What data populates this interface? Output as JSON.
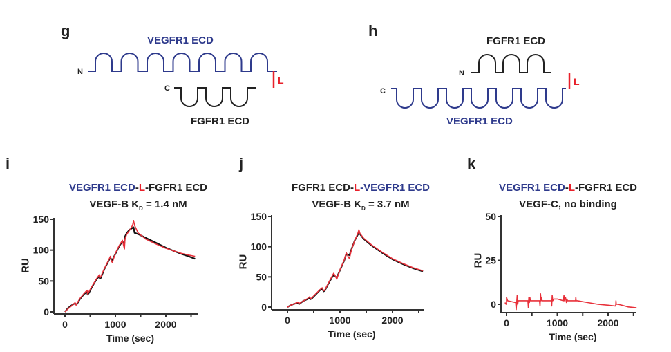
{
  "colors": {
    "vegfr1": "#2e3a8c",
    "fgfr1": "#222222",
    "linker": "#e8202a",
    "data_trace": "#e8303a",
    "fit_trace": "#111111",
    "axis": "#333333"
  },
  "diagrams": [
    {
      "panel_label": "g",
      "top_domain": {
        "label": "VEGFR1 ECD",
        "loops": 7,
        "protein": "vegfr1"
      },
      "bottom_domain": {
        "label": "FGFR1 ECD",
        "loops": 3,
        "protein": "fgfr1"
      },
      "n_terminus": "N",
      "c_terminus": "C",
      "linker_label": "L"
    },
    {
      "panel_label": "h",
      "top_domain": {
        "label": "FGFR1 ECD",
        "loops": 3,
        "protein": "fgfr1"
      },
      "bottom_domain": {
        "label": "VEGFR1 ECD",
        "loops": 7,
        "protein": "vegfr1"
      },
      "n_terminus": "N",
      "c_terminus": "C",
      "linker_label": "L"
    }
  ],
  "chart_data": [
    {
      "panel_label": "i",
      "type": "line",
      "title_parts": [
        {
          "text": "VEGFR1 ECD",
          "color": "vegfr1"
        },
        {
          "text": "-",
          "color": "fgfr1"
        },
        {
          "text": "L",
          "color": "linker"
        },
        {
          "text": "-FGFR1 ECD",
          "color": "fgfr1"
        }
      ],
      "subtitle": {
        "prefix": "VEGF-B K",
        "subscript": "D",
        "suffix": " = 1.4 nM"
      },
      "xlabel": "Time (sec)",
      "ylabel": "RU",
      "xlim": [
        -50,
        2600
      ],
      "ylim": [
        0,
        150
      ],
      "xticks": [
        0,
        1000,
        2000
      ],
      "xminor": [
        500,
        1500,
        2500
      ],
      "yticks": [
        0,
        50,
        100,
        150
      ],
      "grid": false,
      "series": [
        {
          "name": "data",
          "color": "data_trace",
          "x": [
            0,
            60,
            120,
            200,
            220,
            240,
            300,
            380,
            440,
            450,
            470,
            540,
            620,
            680,
            690,
            710,
            780,
            860,
            900,
            920,
            940,
            1000,
            1080,
            1140,
            1160,
            1180,
            1190,
            1220,
            1280,
            1340,
            1360,
            1380,
            1450,
            1600,
            1800,
            2000,
            2150,
            2300,
            2450,
            2580
          ],
          "y": [
            0,
            5,
            9,
            15,
            11,
            14,
            22,
            30,
            35,
            29,
            32,
            42,
            53,
            60,
            55,
            57,
            70,
            83,
            90,
            82,
            80,
            95,
            108,
            116,
            108,
            102,
            118,
            125,
            132,
            140,
            148,
            140,
            128,
            118,
            110,
            103,
            99,
            95,
            92,
            90
          ]
        },
        {
          "name": "fit",
          "color": "fit_trace",
          "x": [
            0,
            60,
            120,
            200,
            220,
            240,
            300,
            380,
            440,
            450,
            470,
            540,
            620,
            680,
            690,
            710,
            780,
            860,
            900,
            920,
            940,
            1000,
            1080,
            1140,
            1160,
            1180,
            1190,
            1220,
            1280,
            1340,
            1360,
            1380,
            1450,
            1600,
            1800,
            2000,
            2150,
            2300,
            2450,
            2580
          ],
          "y": [
            0,
            6,
            10,
            14,
            12,
            13,
            21,
            29,
            32,
            28,
            30,
            41,
            52,
            58,
            54,
            55,
            69,
            82,
            88,
            85,
            84,
            94,
            107,
            114,
            112,
            111,
            122,
            127,
            133,
            136,
            137,
            128,
            126,
            120,
            112,
            104,
            99,
            94,
            90,
            86
          ]
        }
      ]
    },
    {
      "panel_label": "j",
      "type": "line",
      "title_parts": [
        {
          "text": "FGFR1 ECD",
          "color": "fgfr1"
        },
        {
          "text": "-",
          "color": "fgfr1"
        },
        {
          "text": "L",
          "color": "linker"
        },
        {
          "text": "-",
          "color": "vegfr1"
        },
        {
          "text": "VEGFR1 ECD",
          "color": "vegfr1"
        }
      ],
      "subtitle": {
        "prefix": "VEGF-B K",
        "subscript": "D",
        "suffix": " = 3.7 nM"
      },
      "xlabel": "Time (sec)",
      "ylabel": "RU",
      "xlim": [
        -50,
        2600
      ],
      "ylim": [
        0,
        150
      ],
      "xticks": [
        0,
        1000,
        2000
      ],
      "xminor": [
        500,
        1500,
        2500
      ],
      "yticks": [
        0,
        50,
        100,
        150
      ],
      "grid": false,
      "series": [
        {
          "name": "data",
          "color": "data_trace",
          "x": [
            0,
            60,
            120,
            200,
            220,
            240,
            300,
            380,
            420,
            440,
            460,
            540,
            620,
            660,
            690,
            710,
            780,
            860,
            880,
            920,
            940,
            1000,
            1080,
            1120,
            1140,
            1180,
            1190,
            1220,
            1280,
            1340,
            1360,
            1380,
            1450,
            1600,
            1800,
            2000,
            2200,
            2400,
            2580
          ],
          "y": [
            0,
            3,
            5,
            8,
            6,
            7,
            10,
            14,
            17,
            14,
            15,
            22,
            29,
            32,
            27,
            28,
            40,
            53,
            56,
            50,
            46,
            62,
            78,
            90,
            86,
            80,
            84,
            95,
            110,
            122,
            128,
            122,
            114,
            103,
            91,
            80,
            72,
            65,
            60
          ]
        },
        {
          "name": "fit",
          "color": "fit_trace",
          "x": [
            0,
            60,
            120,
            200,
            220,
            240,
            300,
            380,
            420,
            440,
            460,
            540,
            620,
            660,
            690,
            710,
            780,
            860,
            880,
            920,
            940,
            1000,
            1080,
            1120,
            1140,
            1180,
            1190,
            1220,
            1280,
            1340,
            1360,
            1380,
            1450,
            1600,
            1800,
            2000,
            2200,
            2400,
            2580
          ],
          "y": [
            0,
            3,
            5,
            7,
            5,
            6,
            10,
            13,
            15,
            13,
            14,
            21,
            28,
            30,
            26,
            27,
            39,
            51,
            53,
            50,
            49,
            61,
            77,
            88,
            87,
            86,
            88,
            96,
            110,
            120,
            123,
            121,
            113,
            102,
            90,
            79,
            71,
            64,
            59
          ]
        }
      ]
    },
    {
      "panel_label": "k",
      "type": "line",
      "title_parts": [
        {
          "text": "VEGFR1 ECD",
          "color": "vegfr1"
        },
        {
          "text": "-",
          "color": "fgfr1"
        },
        {
          "text": "L",
          "color": "linker"
        },
        {
          "text": "-FGFR1 ECD",
          "color": "fgfr1"
        }
      ],
      "subtitle": {
        "prefix": "VEGF-C, no binding",
        "subscript": "",
        "suffix": ""
      },
      "xlabel": "Time (sec)",
      "ylabel": "RU",
      "xlim": [
        -50,
        2600
      ],
      "ylim": [
        -5,
        50
      ],
      "xticks": [
        0,
        1000,
        2000
      ],
      "xminor": [
        500,
        1500,
        2500
      ],
      "yticks": [
        0,
        25,
        50
      ],
      "grid": false,
      "series": [
        {
          "name": "data",
          "color": "data_trace",
          "x": [
            -30,
            -10,
            0,
            0,
            20,
            180,
            190,
            200,
            210,
            220,
            230,
            240,
            420,
            430,
            440,
            450,
            460,
            470,
            650,
            660,
            670,
            680,
            690,
            700,
            880,
            890,
            900,
            910,
            930,
            960,
            1000,
            1120,
            1130,
            1140,
            1160,
            1180,
            1190,
            1200,
            1360,
            1365,
            1370,
            1400,
            1600,
            1800,
            2000,
            2150,
            2155,
            2160,
            2200,
            2400,
            2560
          ],
          "y": [
            1,
            0,
            0,
            4,
            2,
            1,
            -3,
            1,
            5,
            0,
            2,
            2,
            2,
            -2,
            4,
            1,
            4,
            2,
            2,
            -1,
            6,
            2,
            4,
            2,
            2,
            -1,
            5,
            2,
            3,
            3,
            3,
            2,
            5,
            2,
            4,
            1,
            3,
            2,
            2,
            4,
            2,
            2,
            1,
            0,
            -0.5,
            -1,
            2,
            0,
            0,
            -1.5,
            -2
          ]
        }
      ]
    }
  ]
}
